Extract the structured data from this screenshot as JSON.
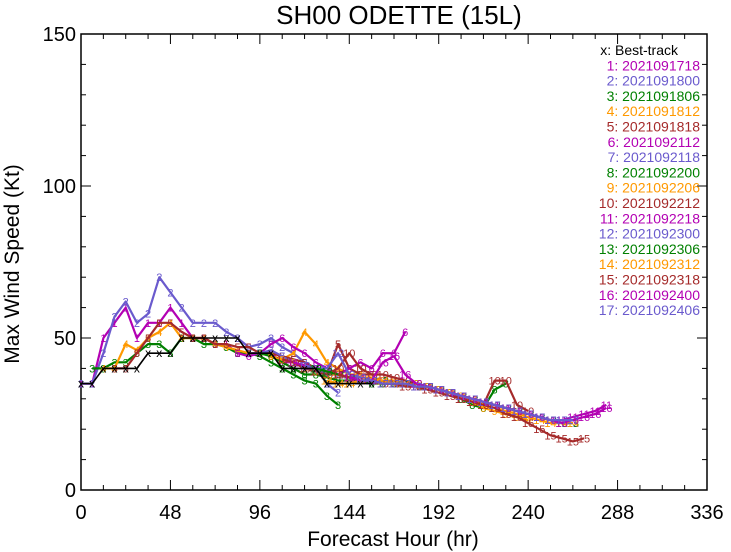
{
  "chart_data": {
    "type": "line",
    "title": "SH00  ODETTE (15L)",
    "xlabel": "Forecast Hour (hr)",
    "ylabel": "Max Wind Speed (Kt)",
    "xlim": [
      0,
      336
    ],
    "ylim": [
      0,
      150
    ],
    "xticks": [
      "0",
      "48",
      "96",
      "144",
      "192",
      "240",
      "288",
      "336"
    ],
    "yticks": [
      "0",
      "50",
      "100",
      "150"
    ],
    "legend_position": "top-right",
    "best_track": {
      "label": "x: Best-track",
      "marker": "x",
      "color": "#000000",
      "x": [
        0,
        6,
        12,
        18,
        24,
        30,
        36,
        42,
        48,
        54,
        60,
        66,
        72,
        78,
        84,
        90,
        96,
        102,
        108,
        114,
        120,
        126,
        132,
        138,
        144,
        150,
        156
      ],
      "y": [
        35,
        35,
        40,
        40,
        40,
        40,
        45,
        45,
        45,
        50,
        50,
        50,
        50,
        50,
        50,
        45,
        45,
        45,
        40,
        40,
        40,
        40,
        35,
        35,
        35,
        35,
        35
      ]
    },
    "series": [
      {
        "label": "1: 2021091718",
        "marker": "1",
        "color": "#b300b3",
        "x": [
          0,
          6,
          12,
          18,
          24,
          30,
          36,
          42,
          48,
          54,
          60,
          66,
          72,
          78,
          84,
          90,
          96,
          102,
          108,
          114,
          120
        ],
        "y": [
          35,
          35,
          50,
          55,
          60,
          50,
          55,
          55,
          60,
          55,
          50,
          50,
          48,
          48,
          45,
          45,
          45,
          45,
          42,
          42,
          40
        ]
      },
      {
        "label": "2: 2021091800",
        "marker": "2",
        "color": "#6a5acd",
        "x": [
          0,
          6,
          12,
          18,
          24,
          30,
          36,
          42,
          48,
          54,
          60,
          66,
          72,
          78,
          84,
          90,
          96,
          102,
          108,
          114,
          120,
          126,
          132,
          138
        ],
        "y": [
          35,
          35,
          45,
          57,
          62,
          55,
          58,
          70,
          65,
          60,
          55,
          55,
          55,
          52,
          50,
          47,
          48,
          50,
          47,
          45,
          42,
          40,
          35,
          32
        ]
      },
      {
        "label": "3: 2021091806",
        "marker": "3",
        "color": "#008000",
        "x": [
          6,
          12,
          18,
          24,
          30,
          36,
          42,
          48,
          54,
          60,
          66,
          72,
          78,
          84,
          90,
          96,
          102,
          108,
          114,
          120,
          126,
          132,
          138
        ],
        "y": [
          40,
          40,
          42,
          42,
          45,
          48,
          48,
          45,
          50,
          50,
          48,
          48,
          47,
          45,
          45,
          44,
          42,
          40,
          38,
          36,
          35,
          31,
          28
        ]
      },
      {
        "label": "4: 2021091812",
        "marker": "4",
        "color": "#ff9900",
        "x": [
          12,
          18,
          24,
          30,
          36,
          42,
          48,
          54,
          60,
          66,
          72,
          78,
          84,
          90,
          96,
          102,
          108,
          114,
          120,
          126,
          132,
          138,
          144,
          150
        ],
        "y": [
          40,
          40,
          48,
          46,
          50,
          52,
          55,
          50,
          50,
          50,
          48,
          47,
          46,
          45,
          45,
          44,
          43,
          45,
          52,
          48,
          42,
          40,
          38,
          38
        ]
      },
      {
        "label": "5: 2021091818",
        "marker": "5",
        "color": "#a52a2a",
        "x": [
          18,
          24,
          30,
          36,
          42,
          48,
          54,
          60,
          66,
          72,
          78,
          84,
          90,
          96,
          102,
          108,
          114,
          120,
          126,
          132,
          138,
          144,
          150,
          156
        ],
        "y": [
          40,
          40,
          45,
          50,
          55,
          55,
          52,
          50,
          50,
          48,
          48,
          47,
          47,
          45,
          45,
          44,
          43,
          42,
          40,
          38,
          48,
          40,
          38,
          38
        ]
      },
      {
        "label": "6: 2021092112",
        "marker": "6",
        "color": "#b300b3",
        "x": [
          84,
          90,
          96,
          102,
          108,
          114,
          120,
          126,
          132,
          138,
          144,
          150,
          156,
          162,
          168,
          174
        ],
        "y": [
          45,
          44,
          45,
          48,
          50,
          47,
          45,
          42,
          40,
          38,
          40,
          42,
          40,
          45,
          45,
          52
        ]
      },
      {
        "label": "7: 2021092118",
        "marker": "7",
        "color": "#6a5acd",
        "x": [
          90,
          96,
          102,
          108,
          114,
          120,
          126,
          132,
          138,
          144,
          150,
          156,
          162,
          168,
          174,
          180
        ],
        "y": [
          45,
          45,
          46,
          44,
          42,
          41,
          40,
          38,
          38,
          37,
          36,
          36,
          35,
          35,
          35,
          34
        ]
      },
      {
        "label": "8: 2021092200",
        "marker": "8",
        "color": "#008000",
        "x": [
          96,
          102,
          108,
          114,
          120,
          126,
          132,
          138,
          144,
          150,
          156,
          162,
          168,
          174,
          180,
          186,
          192,
          198,
          204,
          210,
          216,
          222,
          228
        ],
        "y": [
          45,
          44,
          42,
          40,
          38,
          38,
          37,
          36,
          36,
          36,
          35,
          35,
          35,
          35,
          35,
          34,
          33,
          32,
          30,
          28,
          27,
          33,
          35
        ]
      },
      {
        "label": "9: 2021092206",
        "marker": "9",
        "color": "#ff9900",
        "x": [
          102,
          108,
          114,
          120,
          126,
          132,
          138,
          144,
          150,
          156,
          162,
          168,
          174,
          180,
          186,
          192,
          198,
          204,
          210,
          216,
          222,
          228,
          234,
          240
        ],
        "y": [
          44,
          43,
          42,
          40,
          39,
          38,
          38,
          37,
          37,
          37,
          36,
          36,
          35,
          35,
          34,
          33,
          32,
          31,
          29,
          27,
          26,
          25,
          24,
          23
        ]
      },
      {
        "label": "10: 2021092212",
        "marker": "10",
        "color": "#a52a2a",
        "x": [
          108,
          114,
          120,
          126,
          132,
          138,
          144,
          150,
          156,
          162,
          168,
          174,
          180,
          186,
          192,
          198,
          204,
          210,
          216,
          222,
          228,
          234,
          240
        ],
        "y": [
          43,
          42,
          40,
          39,
          38,
          40,
          45,
          40,
          38,
          38,
          37,
          36,
          35,
          34,
          33,
          32,
          30,
          29,
          28,
          36,
          36,
          28,
          26
        ]
      },
      {
        "label": "11: 2021092218",
        "marker": "11",
        "color": "#b300b3",
        "x": [
          114,
          120,
          126,
          132,
          138,
          144,
          150,
          156,
          162,
          168,
          174,
          180,
          186,
          192,
          198,
          204,
          210,
          216,
          222,
          228,
          234,
          240,
          246,
          252,
          258,
          264,
          270,
          276,
          282
        ],
        "y": [
          42,
          41,
          40,
          39,
          38,
          37,
          37,
          36,
          36,
          35,
          35,
          34,
          34,
          33,
          32,
          31,
          30,
          29,
          28,
          27,
          26,
          25,
          24,
          23,
          23,
          24,
          25,
          26,
          28
        ]
      },
      {
        "label": "12: 2021092300",
        "marker": "12",
        "color": "#6a5acd",
        "x": [
          120,
          126,
          132,
          138,
          144,
          150,
          156,
          162,
          168,
          174,
          180,
          186,
          192,
          198,
          204,
          210,
          216,
          222,
          228,
          234,
          240,
          246,
          252,
          258,
          264
        ],
        "y": [
          41,
          40,
          40,
          45,
          38,
          37,
          36,
          36,
          35,
          35,
          34,
          34,
          33,
          32,
          31,
          30,
          29,
          28,
          27,
          26,
          25,
          24,
          23,
          22,
          22
        ]
      },
      {
        "label": "13: 2021092306",
        "marker": "13",
        "color": "#008000",
        "x": [
          126,
          132,
          138,
          144,
          150,
          156,
          162,
          168,
          174,
          180,
          186,
          192,
          198,
          204,
          210,
          216,
          222,
          228,
          234,
          240,
          246,
          252,
          258,
          264
        ],
        "y": [
          40,
          39,
          38,
          37,
          36,
          36,
          36,
          35,
          35,
          34,
          34,
          33,
          32,
          31,
          30,
          29,
          28,
          27,
          26,
          25,
          24,
          23,
          22,
          22
        ]
      },
      {
        "label": "14: 2021092312",
        "marker": "14",
        "color": "#ff9900",
        "x": [
          132,
          138,
          144,
          150,
          156,
          162,
          168,
          174,
          180,
          186,
          192,
          198,
          204,
          210,
          216,
          222,
          228,
          234,
          240,
          246,
          252,
          258,
          264
        ],
        "y": [
          36,
          35,
          35,
          36,
          36,
          36,
          35,
          35,
          34,
          34,
          33,
          32,
          31,
          30,
          28,
          27,
          26,
          25,
          24,
          23,
          22,
          22,
          22
        ]
      },
      {
        "label": "15: 2021092318",
        "marker": "15",
        "color": "#a52a2a",
        "x": [
          138,
          144,
          150,
          156,
          162,
          168,
          174,
          180,
          186,
          192,
          198,
          204,
          210,
          216,
          222,
          228,
          234,
          240,
          246,
          252,
          258,
          264,
          270
        ],
        "y": [
          38,
          37,
          36,
          36,
          35,
          35,
          34,
          34,
          33,
          32,
          31,
          30,
          29,
          28,
          27,
          25,
          24,
          22,
          20,
          18,
          17,
          16,
          17
        ]
      },
      {
        "label": "16: 2021092400",
        "marker": "16",
        "color": "#b300b3",
        "x": [
          144,
          150,
          156,
          162,
          168,
          174,
          180,
          186,
          192,
          198,
          204,
          210,
          216,
          222,
          228,
          234,
          240,
          246,
          252,
          258,
          264,
          270,
          276,
          282
        ],
        "y": [
          37,
          36,
          36,
          42,
          44,
          38,
          35,
          34,
          33,
          32,
          31,
          30,
          29,
          28,
          27,
          26,
          25,
          24,
          23,
          22,
          23,
          24,
          25,
          27
        ]
      },
      {
        "label": "17: 2021092406",
        "marker": "17",
        "color": "#6a5acd",
        "x": [
          150,
          156,
          162,
          168,
          174,
          180,
          186,
          192,
          198,
          204,
          210,
          216,
          222,
          228,
          234,
          240,
          246,
          252,
          258,
          264
        ],
        "y": [
          36,
          36,
          35,
          35,
          35,
          34,
          34,
          33,
          32,
          31,
          30,
          29,
          28,
          27,
          26,
          25,
          24,
          23,
          23,
          23
        ]
      }
    ]
  }
}
